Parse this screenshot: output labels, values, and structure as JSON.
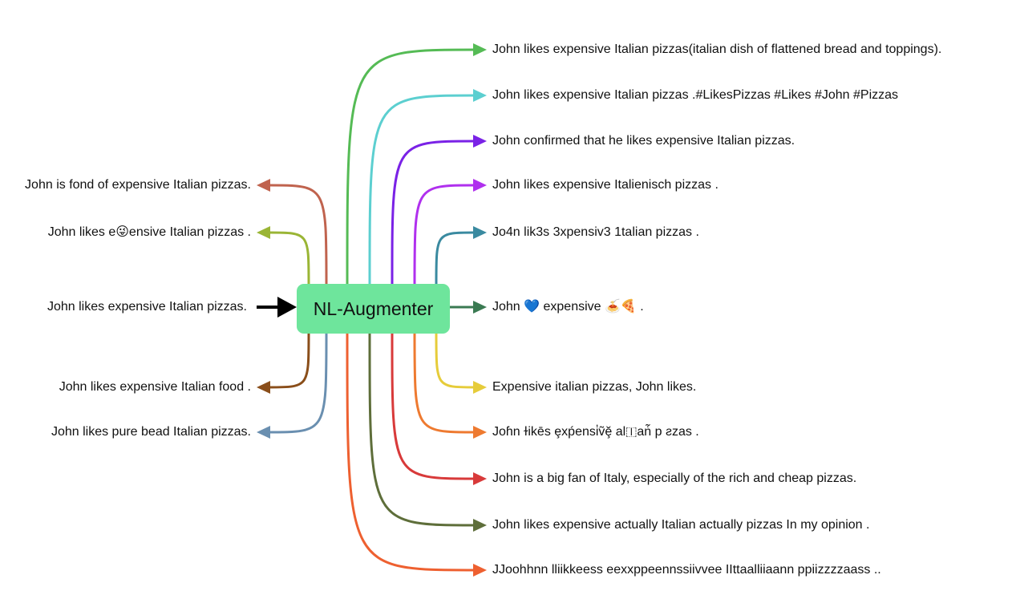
{
  "center": {
    "label": "NL-Augmenter",
    "color": "#6ee59c"
  },
  "input": {
    "label": "John likes expensive Italian pizzas.",
    "arrow_color": "#000000"
  },
  "left_outputs": [
    {
      "text": "John is fond of expensive Italian pizzas.",
      "color": "#c0634e"
    },
    {
      "text": "John likes e😜ensive Italian pizzas .",
      "color": "#9ab535"
    },
    {
      "text": "John likes expensive Italian food .",
      "color": "#8a4e1a"
    },
    {
      "text": "John likes pure bead Italian pizzas.",
      "color": "#6a8fb0"
    }
  ],
  "right_outputs": [
    {
      "text": "John likes expensive Italian pizzas(italian dish of flattened bread and toppings).",
      "color": "#55bb55"
    },
    {
      "text": "John likes expensive Italian pizzas .#LikesPizzas #Likes #John #Pizzas",
      "color": "#5ccfd0"
    },
    {
      "text": "John confirmed that he likes expensive Italian pizzas.",
      "color": "#7a22e6"
    },
    {
      "text": "John likes expensive Italienisch pizzas .",
      "color": "#b030ee"
    },
    {
      "text": "Jo4n lik3s 3xpensiv3 1talian pizzas .",
      "color": "#3a8aa0"
    },
    {
      "text": "John 💙 expensive 🍝🍕 .",
      "color": "#3a7a52"
    },
    {
      "text": "Expensive italian pizzas, John likes.",
      "color": "#e6cc3a"
    },
    {
      "text": "Joɦn ɫikēs ȩxṕensi̇ṽḝ   al🇮aṅ̃ p  ƨzas .",
      "color": "#ee7a30"
    },
    {
      "text": "John is a big fan of Italy, especially of the rich and cheap pizzas.",
      "color": "#d83a3a"
    },
    {
      "text": "John likes expensive actually Italian actually pizzas In my opinion .",
      "color": "#5e6e3a"
    },
    {
      "text": "JJoohhnn  lliikkeess  eexxppeennssiivvee  IIttaalliiaann  ppiizzzzaass ..",
      "color": "#ee6030"
    }
  ]
}
